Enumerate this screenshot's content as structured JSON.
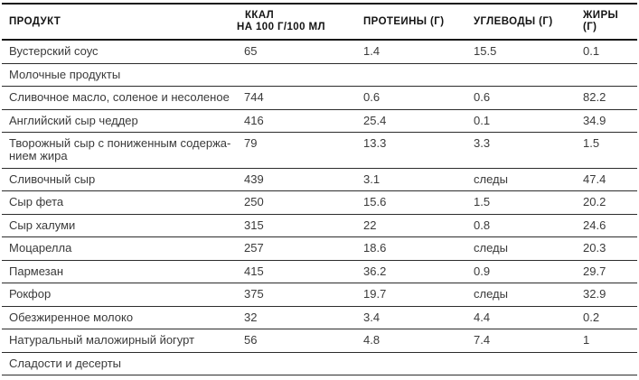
{
  "colors": {
    "background": "#ffffff",
    "body_text": "#3a3a3a",
    "header_text": "#141414",
    "rule_heavy": "#181818",
    "rule_light": "#2c2c2c"
  },
  "table": {
    "columns": [
      {
        "label": "ПРОДУКТ"
      },
      {
        "label_line1": "ККАЛ",
        "label_line2": "НА 100 Г/100 МЛ"
      },
      {
        "label": "ПРОТЕИНЫ (Г)"
      },
      {
        "label": "УГЛЕВОДЫ (Г)"
      },
      {
        "label": "ЖИРЫ (Г)"
      }
    ],
    "rows": [
      {
        "type": "data",
        "name": "Вустерский соус",
        "kcal": "65",
        "protein": "1.4",
        "carbs": "15.5",
        "fat": "0.1"
      },
      {
        "type": "section",
        "name": "Молочные продукты"
      },
      {
        "type": "data",
        "name": "Сливочное масло, соленое и несоленое",
        "kcal": "744",
        "protein": "0.6",
        "carbs": "0.6",
        "fat": "82.2"
      },
      {
        "type": "data",
        "name": "Английский сыр чеддер",
        "kcal": "416",
        "protein": "25.4",
        "carbs": "0.1",
        "fat": "34.9"
      },
      {
        "type": "data",
        "name": "Творожный сыр с пониженным содержа-\nнием жира",
        "kcal": "79",
        "protein": "13.3",
        "carbs": "3.3",
        "fat": "1.5"
      },
      {
        "type": "data",
        "name": "Сливочный сыр",
        "kcal": "439",
        "protein": "3.1",
        "carbs": "следы",
        "fat": "47.4"
      },
      {
        "type": "data",
        "name": "Сыр фета",
        "kcal": "250",
        "protein": "15.6",
        "carbs": "1.5",
        "fat": "20.2"
      },
      {
        "type": "data",
        "name": "Сыр халуми",
        "kcal": "315",
        "protein": "22",
        "carbs": "0.8",
        "fat": "24.6"
      },
      {
        "type": "data",
        "name": "Моцарелла",
        "kcal": "257",
        "protein": "18.6",
        "carbs": "следы",
        "fat": "20.3"
      },
      {
        "type": "data",
        "name": "Пармезан",
        "kcal": "415",
        "protein": "36.2",
        "carbs": "0.9",
        "fat": "29.7"
      },
      {
        "type": "data",
        "name": "Рокфор",
        "kcal": "375",
        "protein": "19.7",
        "carbs": "следы",
        "fat": "32.9"
      },
      {
        "type": "data",
        "name": "Обезжиренное молоко",
        "kcal": "32",
        "protein": "3.4",
        "carbs": "4.4",
        "fat": "0.2"
      },
      {
        "type": "data",
        "name": "Натуральный маложирный йогурт",
        "kcal": "56",
        "protein": "4.8",
        "carbs": "7.4",
        "fat": "1"
      },
      {
        "type": "section",
        "name": "Сладости и десерты"
      }
    ]
  }
}
